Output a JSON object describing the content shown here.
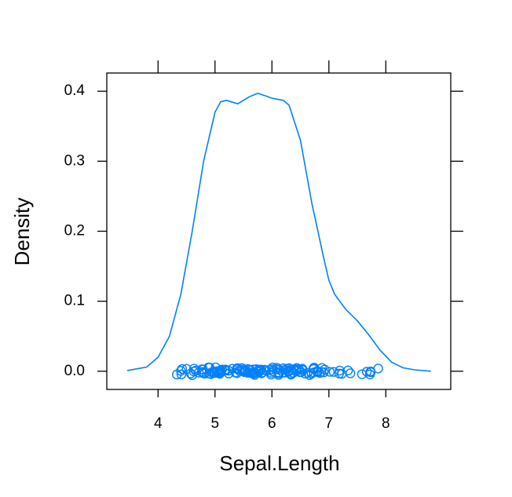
{
  "chart_data": {
    "type": "density",
    "x_label": "Sepal.Length",
    "y_label": "Density",
    "color": "#0080ff",
    "xlim": [
      3.1,
      9.14
    ],
    "ylim": [
      -0.026,
      0.426
    ],
    "xticks": [
      4,
      5,
      6,
      7,
      8
    ],
    "yticks": [
      {
        "value": 0,
        "label": "0.0"
      },
      0.1,
      0.2,
      0.3,
      0.4
    ],
    "x": [
      3.46,
      3.8,
      4.0,
      4.2,
      4.4,
      4.6,
      4.8,
      5.0,
      5.1,
      5.2,
      5.4,
      5.6,
      5.75,
      5.9,
      6.0,
      6.2,
      6.3,
      6.5,
      6.7,
      6.9,
      7.0,
      7.1,
      7.3,
      7.5,
      7.7,
      7.9,
      8.1,
      8.3,
      8.5,
      8.79
    ],
    "values": [
      0.001,
      0.006,
      0.02,
      0.05,
      0.11,
      0.2,
      0.3,
      0.37,
      0.385,
      0.387,
      0.382,
      0.392,
      0.397,
      0.393,
      0.39,
      0.387,
      0.38,
      0.33,
      0.24,
      0.165,
      0.13,
      0.11,
      0.088,
      0.072,
      0.052,
      0.03,
      0.013,
      0.005,
      0.002,
      0.0
    ],
    "points": [
      5.1,
      4.9,
      4.7,
      4.6,
      5.0,
      5.4,
      4.6,
      5.0,
      4.4,
      4.9,
      5.4,
      4.8,
      4.8,
      4.3,
      5.8,
      5.7,
      5.4,
      5.1,
      5.7,
      5.1,
      5.4,
      5.1,
      4.6,
      5.1,
      4.8,
      5.0,
      5.0,
      5.2,
      5.2,
      4.7,
      4.8,
      5.4,
      5.2,
      5.5,
      4.9,
      5.0,
      5.5,
      4.9,
      4.4,
      5.1,
      5.0,
      4.5,
      4.4,
      5.0,
      5.1,
      4.8,
      5.1,
      4.6,
      5.3,
      5.0,
      7.0,
      6.4,
      6.9,
      5.5,
      6.5,
      5.7,
      6.3,
      4.9,
      6.6,
      5.2,
      5.0,
      5.9,
      6.0,
      6.1,
      5.6,
      6.7,
      5.6,
      5.8,
      6.2,
      5.6,
      5.9,
      6.1,
      6.3,
      6.1,
      6.4,
      6.6,
      6.8,
      6.7,
      6.0,
      5.7,
      5.5,
      5.5,
      5.8,
      6.0,
      5.4,
      6.0,
      6.7,
      6.3,
      5.6,
      5.5,
      5.5,
      6.1,
      5.8,
      5.0,
      5.6,
      5.7,
      5.7,
      6.2,
      5.1,
      5.7,
      6.3,
      5.8,
      7.1,
      6.3,
      6.5,
      7.6,
      4.9,
      7.3,
      6.7,
      7.2,
      6.5,
      6.4,
      6.8,
      5.7,
      5.8,
      6.4,
      6.5,
      7.7,
      7.7,
      6.0,
      6.9,
      5.6,
      7.7,
      6.3,
      6.7,
      7.2,
      6.2,
      6.1,
      6.4,
      7.2,
      7.4,
      7.9,
      6.4,
      6.3,
      6.1,
      7.7,
      6.3,
      6.4,
      6.0,
      6.9,
      6.7,
      6.9,
      5.8,
      6.8,
      6.7,
      6.7,
      6.3,
      6.5,
      6.2,
      5.9
    ]
  }
}
